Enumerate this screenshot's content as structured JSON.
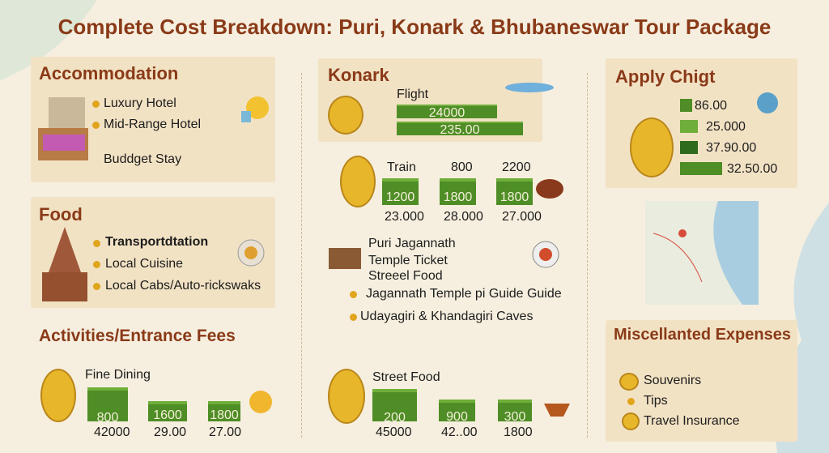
{
  "title": "Complete Cost Breakdown:  Puri, Konark & Bhubaneswar Tour Package",
  "accommodation": {
    "heading": "Accommodation",
    "items": [
      "Luxury Hotel",
      "Mid-Range Hotel",
      "Buddget Stay"
    ]
  },
  "food": {
    "heading": "Food",
    "items": [
      "Transportdtation",
      "Local Cuisine",
      "Local Cabs/Auto-rickswaks"
    ]
  },
  "activities": {
    "heading": "Activities/Entrance Fees",
    "label": "Fine Dining",
    "bars": [
      "800",
      "1600",
      "1800"
    ],
    "totals": [
      "42000",
      "29.00",
      "27.00"
    ]
  },
  "konark": {
    "heading": "Konark",
    "label": "Flight",
    "bars": [
      "24000",
      "235.00"
    ]
  },
  "transport": {
    "label": "Train",
    "headers": [
      "800",
      "2200"
    ],
    "bars": [
      "1200",
      "1800",
      "1800"
    ],
    "totals": [
      "23.000",
      "28.000",
      "27.000"
    ]
  },
  "sights": {
    "lines": [
      "Puri Jagannath",
      "Temple Ticket",
      "Streeel Food"
    ],
    "items": [
      "Jagannath Temple pi Guide Guide",
      "Udayagiri & Khandagiri Caves"
    ]
  },
  "street_food": {
    "label": "Street Food",
    "bars": [
      "200",
      "900",
      "300"
    ],
    "totals": [
      "45000",
      "42..00",
      "1800"
    ]
  },
  "apply": {
    "heading": "Apply Chigt",
    "rows": [
      "86.00",
      "25.000",
      "37.90.00",
      "32.50.00"
    ]
  },
  "misc": {
    "heading": "Miscellanted Expenses",
    "items": [
      "Souvenirs",
      "Tips",
      "Travel Insurance"
    ]
  }
}
